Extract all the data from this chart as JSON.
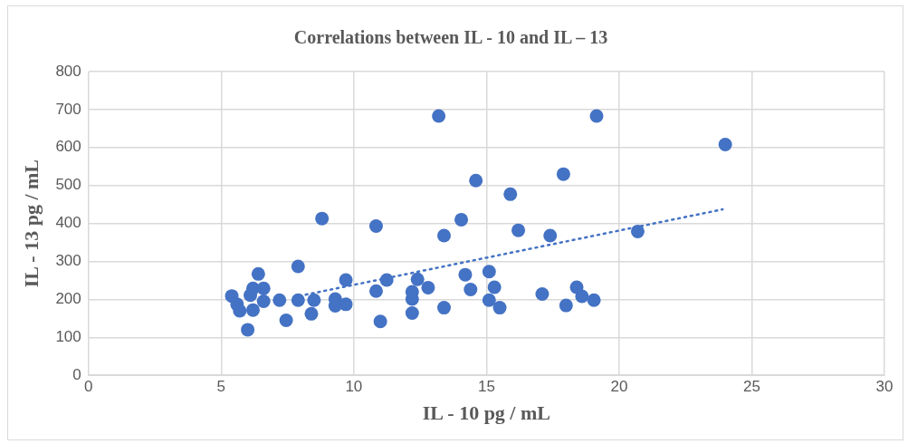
{
  "chart_data": {
    "type": "scatter",
    "title": "Correlations between IL - 10 and IL – 13",
    "xlabel": "IL - 10 pg / mL",
    "ylabel": "IL - 13 pg / mL",
    "xlim": [
      0,
      30
    ],
    "xticks": [
      0,
      5,
      10,
      15,
      20,
      25,
      30
    ],
    "ylim": [
      0,
      800
    ],
    "yticks": [
      0,
      100,
      200,
      300,
      400,
      500,
      600,
      700,
      800
    ],
    "grid": true,
    "marker": "circle",
    "series": [
      {
        "type": "scatter",
        "color": "#4472c4",
        "x": [
          5.4,
          5.6,
          5.7,
          6.0,
          6.1,
          6.2,
          6.2,
          6.4,
          6.6,
          6.6,
          7.2,
          7.45,
          7.9,
          7.9,
          8.4,
          8.5,
          8.8,
          9.3,
          9.3,
          9.7,
          9.7,
          10.84,
          10.84,
          11.0,
          11.24,
          12.2,
          12.2,
          12.2,
          12.4,
          12.8,
          13.2,
          13.4,
          13.4,
          14.05,
          14.2,
          14.4,
          14.6,
          15.1,
          15.1,
          15.3,
          15.5,
          15.9,
          16.2,
          17.1,
          17.4,
          17.9,
          18.0,
          18.4,
          18.6,
          19.05,
          19.15,
          20.7,
          24.0
        ],
        "values": [
          209,
          187,
          170,
          120,
          211,
          229,
          172,
          267,
          229,
          195,
          198,
          145,
          287,
          198,
          162,
          198,
          413,
          201,
          183,
          187,
          251,
          393,
          222,
          142,
          251,
          220,
          201,
          164,
          253,
          231,
          683,
          368,
          178,
          410,
          265,
          226,
          513,
          273,
          198,
          232,
          178,
          477,
          382,
          214,
          368,
          530,
          184,
          232,
          208,
          198,
          683,
          379,
          608
        ]
      },
      {
        "type": "line",
        "color": "#4472c4",
        "line_style": "dotted",
        "marker": "none",
        "x": [
          7.95,
          23.9
        ],
        "values": [
          209,
          437
        ]
      }
    ]
  }
}
